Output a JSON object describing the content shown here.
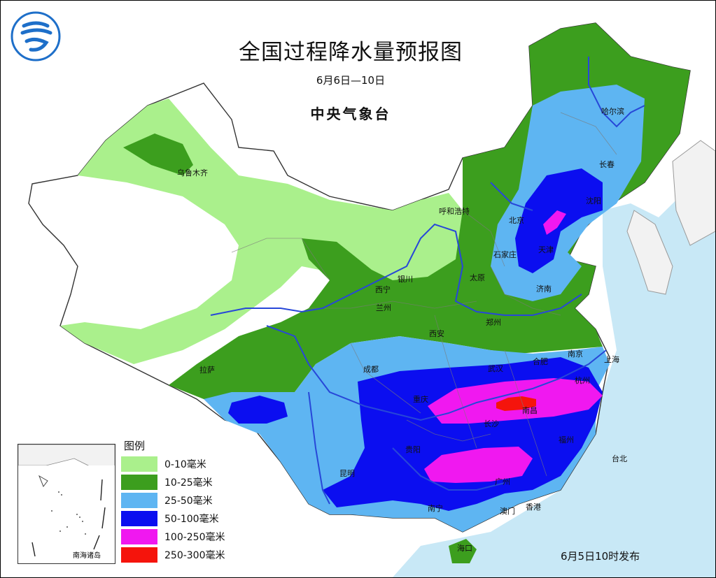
{
  "header": {
    "title": "全国过程降水量预报图",
    "period": "6月6日—10日",
    "issuer": "中央气象台"
  },
  "legend": {
    "title": "图例",
    "items": [
      {
        "label": "0-10毫米",
        "color": "#aaf08c"
      },
      {
        "label": "10-25毫米",
        "color": "#3c9e1e"
      },
      {
        "label": "25-50毫米",
        "color": "#5eb5f2"
      },
      {
        "label": "50-100毫米",
        "color": "#0b0ef0"
      },
      {
        "label": "100-250毫米",
        "color": "#f018f0"
      },
      {
        "label": "250-300毫米",
        "color": "#f5140c"
      }
    ]
  },
  "inset": {
    "label": "南海诸岛"
  },
  "release_note": "6月5日10时发布",
  "colors": {
    "sea": "#c8e8f6",
    "land_outside": "#f2f2f2",
    "river": "#2747d8"
  },
  "cities": [
    {
      "name": "乌鲁木齐"
    },
    {
      "name": "哈尔滨"
    },
    {
      "name": "长春"
    },
    {
      "name": "沈阳"
    },
    {
      "name": "呼和浩特"
    },
    {
      "name": "北京"
    },
    {
      "name": "天津"
    },
    {
      "name": "石家庄"
    },
    {
      "name": "太原"
    },
    {
      "name": "济南"
    },
    {
      "name": "西宁"
    },
    {
      "name": "银川"
    },
    {
      "name": "兰州"
    },
    {
      "name": "郑州"
    },
    {
      "name": "西安"
    },
    {
      "name": "南京"
    },
    {
      "name": "上海"
    },
    {
      "name": "合肥"
    },
    {
      "name": "武汉"
    },
    {
      "name": "杭州"
    },
    {
      "name": "拉萨"
    },
    {
      "name": "成都"
    },
    {
      "name": "重庆"
    },
    {
      "name": "南昌"
    },
    {
      "name": "长沙"
    },
    {
      "name": "福州"
    },
    {
      "name": "贵阳"
    },
    {
      "name": "台北"
    },
    {
      "name": "昆明"
    },
    {
      "name": "广州"
    },
    {
      "name": "南宁"
    },
    {
      "name": "澳门"
    },
    {
      "name": "香港"
    },
    {
      "name": "海口"
    }
  ]
}
